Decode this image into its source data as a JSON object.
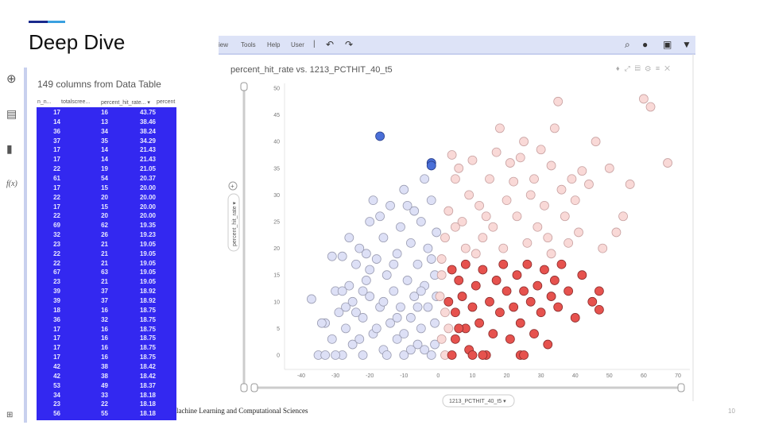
{
  "slide": {
    "title": "Deep Dive",
    "footer": "lachine Learning and Computational Sciences",
    "page_number": "10"
  },
  "sidebar_icons": [
    "add-icon",
    "table-icon",
    "bar-chart-icon",
    "function-icon",
    "network-icon"
  ],
  "function_label": "f(x)",
  "table": {
    "header": "149 columns from Data Table",
    "columns": [
      "n_n...",
      "totalscree...",
      "percent_hit_rate... ▾",
      "percent"
    ],
    "rows": [
      [
        "17",
        "16",
        "43.75"
      ],
      [
        "14",
        "13",
        "38.46"
      ],
      [
        "36",
        "34",
        "38.24"
      ],
      [
        "37",
        "35",
        "34.29"
      ],
      [
        "17",
        "14",
        "21.43"
      ],
      [
        "17",
        "14",
        "21.43"
      ],
      [
        "22",
        "19",
        "21.05"
      ],
      [
        "61",
        "54",
        "20.37"
      ],
      [
        "17",
        "15",
        "20.00"
      ],
      [
        "22",
        "20",
        "20.00"
      ],
      [
        "17",
        "15",
        "20.00"
      ],
      [
        "22",
        "20",
        "20.00"
      ],
      [
        "69",
        "62",
        "19.35"
      ],
      [
        "32",
        "26",
        "19.23"
      ],
      [
        "23",
        "21",
        "19.05"
      ],
      [
        "22",
        "21",
        "19.05"
      ],
      [
        "22",
        "21",
        "19.05"
      ],
      [
        "67",
        "63",
        "19.05"
      ],
      [
        "23",
        "21",
        "19.05"
      ],
      [
        "39",
        "37",
        "18.92"
      ],
      [
        "39",
        "37",
        "18.92"
      ],
      [
        "18",
        "16",
        "18.75"
      ],
      [
        "36",
        "32",
        "18.75"
      ],
      [
        "17",
        "16",
        "18.75"
      ],
      [
        "17",
        "16",
        "18.75"
      ],
      [
        "17",
        "16",
        "18.75"
      ],
      [
        "17",
        "16",
        "18.75"
      ],
      [
        "42",
        "38",
        "18.42"
      ],
      [
        "42",
        "38",
        "18.42"
      ],
      [
        "53",
        "49",
        "18.37"
      ],
      [
        "34",
        "33",
        "18.18"
      ],
      [
        "23",
        "22",
        "18.18"
      ],
      [
        "56",
        "55",
        "18.18"
      ]
    ]
  },
  "toolbar": {
    "menu": [
      "iew",
      "Tools",
      "Help",
      "User"
    ],
    "separator": "|",
    "undo": "↶",
    "redo": "↷",
    "icons": [
      "search-icon",
      "comment-icon",
      "bookmark-icon",
      "filter-icon"
    ]
  },
  "chart_data": {
    "type": "scatter",
    "title": "percent_hit_rate vs. 1213_PCTHIT_40_t5",
    "xlabel": "1213_PCTHIT_40_t5 ▾",
    "ylabel": "percent_hit_rate ▾",
    "xlim": [
      -45,
      72
    ],
    "ylim": [
      -1,
      51
    ],
    "xticks": [
      -40,
      -30,
      -20,
      -10,
      0,
      10,
      20,
      30,
      40,
      50,
      60,
      70
    ],
    "yticks": [
      0,
      5,
      10,
      15,
      20,
      25,
      30,
      35,
      40,
      45,
      50
    ],
    "colors": {
      "blue": "#dde0f6",
      "pink": "#f9d9d7",
      "red": "#e6524e",
      "selected": "#4a6fd8"
    },
    "series": [
      {
        "name": "blue",
        "points": [
          [
            -37,
            10.5
          ],
          [
            -35,
            0
          ],
          [
            -33,
            6
          ],
          [
            -33,
            0
          ],
          [
            -31,
            3
          ],
          [
            -31,
            18.5
          ],
          [
            -30,
            12
          ],
          [
            -29,
            8
          ],
          [
            -28,
            0
          ],
          [
            -28,
            18.5
          ],
          [
            -27,
            5
          ],
          [
            -26,
            13
          ],
          [
            -25,
            10
          ],
          [
            -25,
            2
          ],
          [
            -24,
            17
          ],
          [
            -23,
            20
          ],
          [
            -22,
            7
          ],
          [
            -22,
            0
          ],
          [
            -21,
            14
          ],
          [
            -20,
            11
          ],
          [
            -20,
            25
          ],
          [
            -19,
            4
          ],
          [
            -19,
            29
          ],
          [
            -18,
            18
          ],
          [
            -17,
            9
          ],
          [
            -16,
            22
          ],
          [
            -16,
            1
          ],
          [
            -15,
            15
          ],
          [
            -14,
            6
          ],
          [
            -14,
            28
          ],
          [
            -13,
            12
          ],
          [
            -12,
            19
          ],
          [
            -12,
            3
          ],
          [
            -11,
            24
          ],
          [
            -11,
            9
          ],
          [
            -10,
            31
          ],
          [
            -10,
            0
          ],
          [
            -9,
            14
          ],
          [
            -8,
            7
          ],
          [
            -8,
            21
          ],
          [
            -7,
            27
          ],
          [
            -7,
            11
          ],
          [
            -6,
            2
          ],
          [
            -6,
            17
          ],
          [
            -5,
            25
          ],
          [
            -5,
            5
          ],
          [
            -4,
            33
          ],
          [
            -4,
            13
          ],
          [
            -3,
            9
          ],
          [
            -3,
            20
          ],
          [
            -2,
            0
          ],
          [
            -2,
            29
          ],
          [
            -1,
            15
          ],
          [
            -1,
            6
          ],
          [
            -0.5,
            23
          ],
          [
            -0.5,
            11
          ],
          [
            -26,
            22
          ],
          [
            -22,
            12
          ],
          [
            -18,
            5
          ],
          [
            -15,
            0
          ],
          [
            -24,
            8
          ],
          [
            -9,
            28
          ],
          [
            -13,
            17
          ],
          [
            -30,
            0
          ],
          [
            -28,
            12
          ],
          [
            -20,
            16
          ],
          [
            -6,
            9
          ],
          [
            -4,
            1
          ],
          [
            -16,
            10
          ],
          [
            -10,
            4
          ],
          [
            -34,
            6
          ],
          [
            -27,
            9
          ],
          [
            -23,
            3
          ],
          [
            -21,
            19
          ],
          [
            -17,
            26
          ],
          [
            -12,
            7
          ],
          [
            -8,
            1
          ],
          [
            -5,
            12
          ],
          [
            -2,
            18
          ],
          [
            -1,
            2
          ]
        ]
      },
      {
        "name": "pink",
        "points": [
          [
            1,
            18
          ],
          [
            2,
            22
          ],
          [
            3,
            27
          ],
          [
            4,
            37.5
          ],
          [
            5,
            33
          ],
          [
            6,
            35
          ],
          [
            7,
            25
          ],
          [
            8,
            20
          ],
          [
            9,
            30
          ],
          [
            10,
            36.5
          ],
          [
            12,
            28
          ],
          [
            13,
            22
          ],
          [
            14,
            26
          ],
          [
            15,
            33
          ],
          [
            17,
            38
          ],
          [
            18,
            42.5
          ],
          [
            19,
            20
          ],
          [
            20,
            29
          ],
          [
            21,
            36
          ],
          [
            22,
            32.5
          ],
          [
            23,
            26
          ],
          [
            24,
            37
          ],
          [
            25,
            40
          ],
          [
            26,
            21
          ],
          [
            27,
            30
          ],
          [
            28,
            33
          ],
          [
            29,
            24
          ],
          [
            30,
            38.5
          ],
          [
            31,
            28
          ],
          [
            32,
            22
          ],
          [
            33,
            35.5
          ],
          [
            34,
            42.5
          ],
          [
            35,
            47.5
          ],
          [
            36,
            31
          ],
          [
            37,
            26
          ],
          [
            38,
            21
          ],
          [
            39,
            33
          ],
          [
            40,
            29
          ],
          [
            41,
            23
          ],
          [
            42,
            34.5
          ],
          [
            44,
            32
          ],
          [
            46,
            40
          ],
          [
            48,
            20
          ],
          [
            50,
            35
          ],
          [
            52,
            23
          ],
          [
            54,
            26
          ],
          [
            56,
            32
          ],
          [
            60,
            48
          ],
          [
            62,
            46.5
          ],
          [
            67,
            36
          ],
          [
            1,
            3
          ],
          [
            2,
            8
          ],
          [
            0.5,
            11
          ],
          [
            2,
            0
          ],
          [
            3,
            5
          ],
          [
            1,
            15
          ],
          [
            5,
            24
          ],
          [
            11,
            19
          ],
          [
            16,
            24
          ],
          [
            33,
            19
          ]
        ]
      },
      {
        "name": "red",
        "points": [
          [
            4,
            0
          ],
          [
            5,
            3
          ],
          [
            5,
            8
          ],
          [
            6,
            14
          ],
          [
            7,
            11
          ],
          [
            8,
            5
          ],
          [
            8,
            17
          ],
          [
            9,
            1
          ],
          [
            10,
            9
          ],
          [
            11,
            13
          ],
          [
            12,
            6
          ],
          [
            13,
            16
          ],
          [
            14,
            0
          ],
          [
            15,
            10
          ],
          [
            16,
            4
          ],
          [
            17,
            14
          ],
          [
            18,
            8
          ],
          [
            19,
            17
          ],
          [
            20,
            12
          ],
          [
            21,
            3
          ],
          [
            22,
            9
          ],
          [
            23,
            15
          ],
          [
            24,
            0
          ],
          [
            24,
            6
          ],
          [
            25,
            12
          ],
          [
            26,
            17
          ],
          [
            27,
            10
          ],
          [
            28,
            4
          ],
          [
            29,
            13
          ],
          [
            30,
            8
          ],
          [
            31,
            16
          ],
          [
            32,
            2
          ],
          [
            33,
            11
          ],
          [
            34,
            14
          ],
          [
            35,
            9
          ],
          [
            36,
            17
          ],
          [
            38,
            12
          ],
          [
            40,
            7
          ],
          [
            42,
            15
          ],
          [
            45,
            10
          ],
          [
            47,
            12
          ],
          [
            47,
            8.5
          ],
          [
            10,
            0
          ],
          [
            13,
            0
          ],
          [
            25,
            0
          ],
          [
            6,
            5
          ],
          [
            3,
            10
          ],
          [
            4,
            16
          ]
        ]
      },
      {
        "name": "selected",
        "points": [
          [
            -17,
            41
          ],
          [
            -2,
            36
          ],
          [
            -2,
            35.5
          ]
        ]
      }
    ]
  }
}
